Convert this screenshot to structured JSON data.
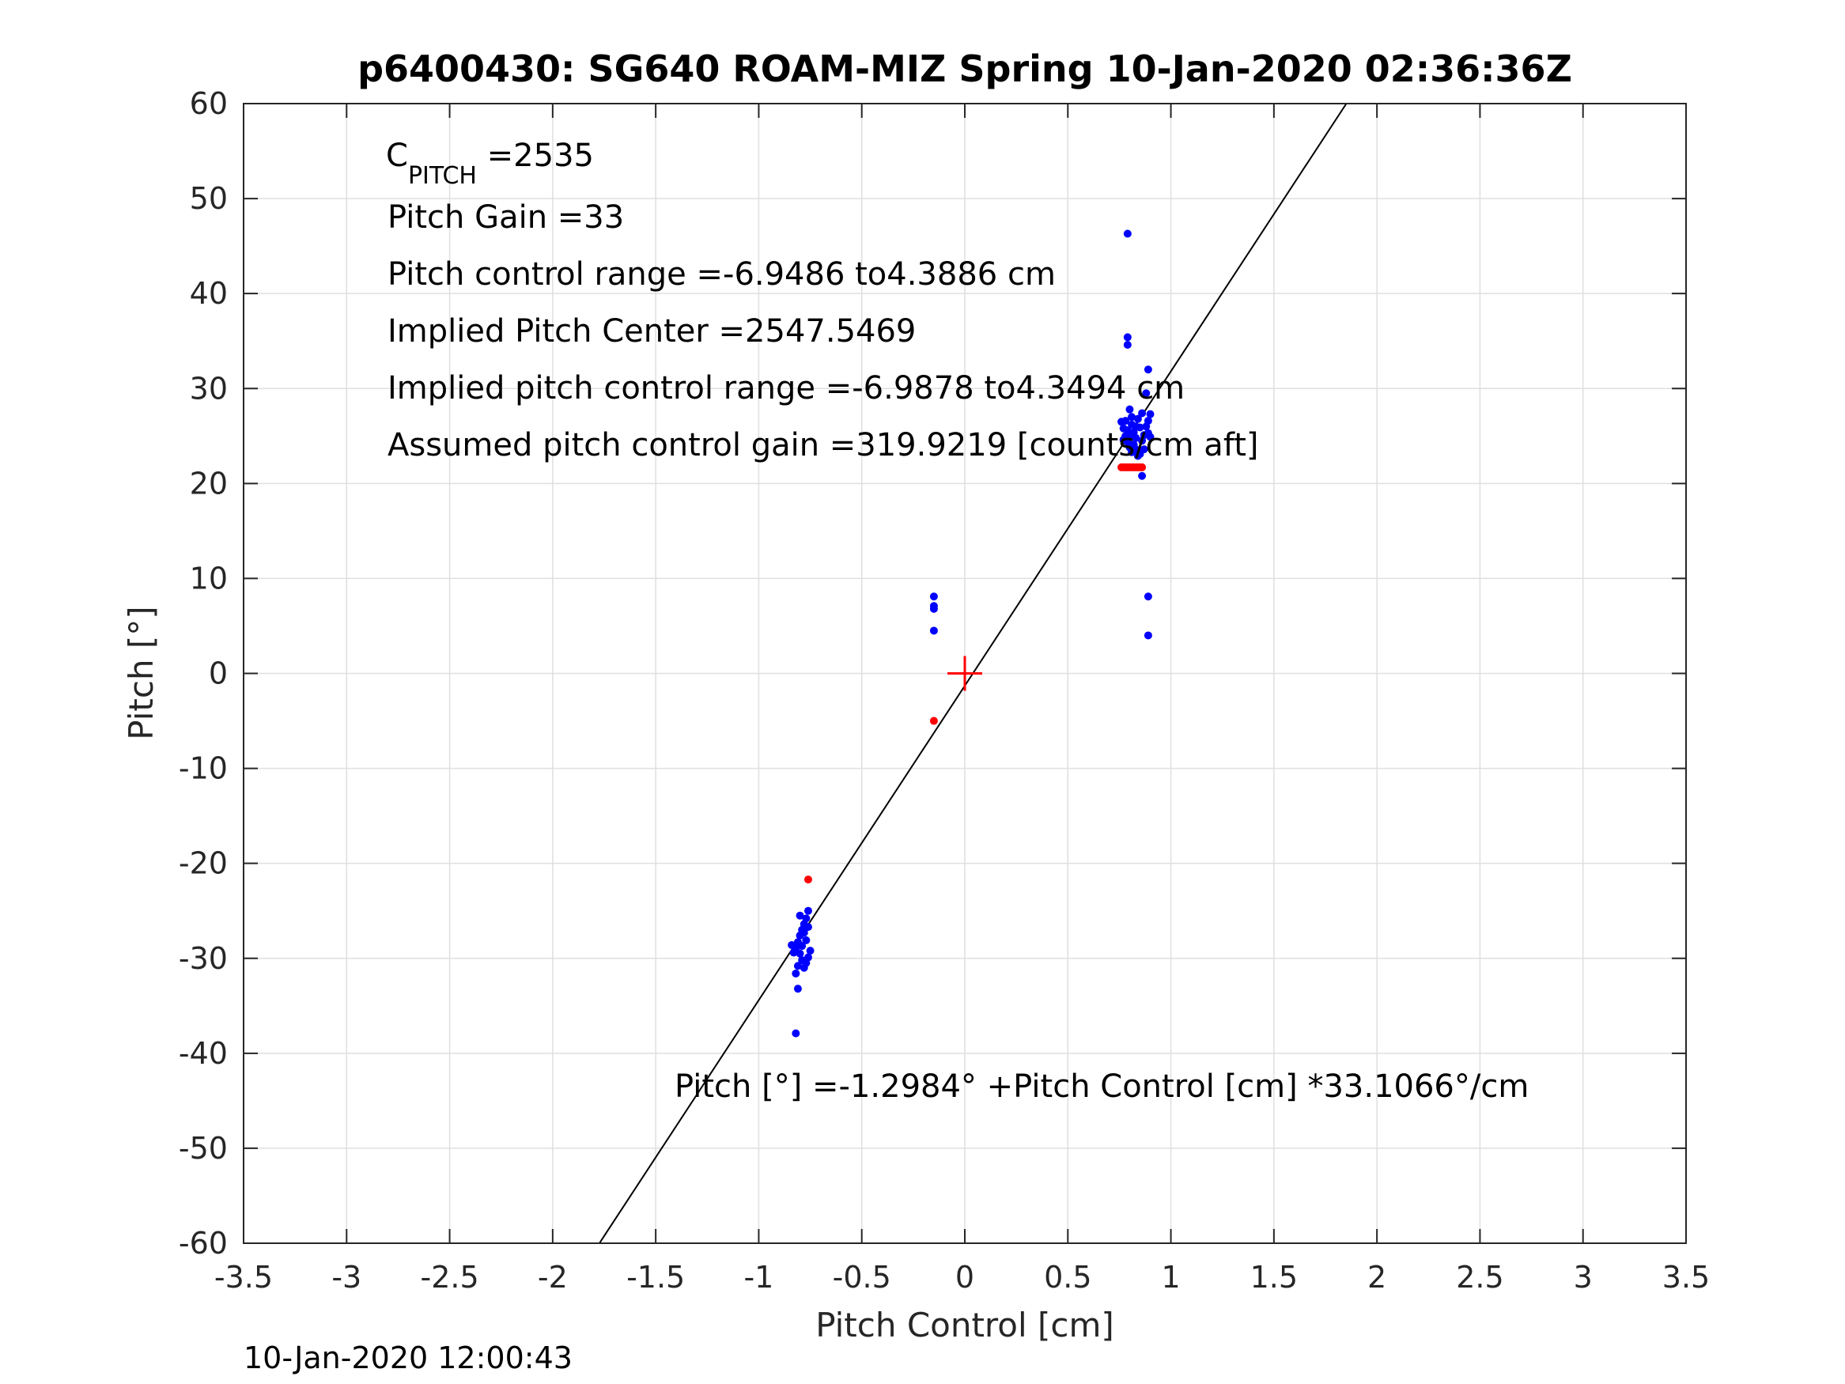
{
  "chart_data": {
    "type": "scatter",
    "title": "p6400430: SG640 ROAM-MIZ Spring 10-Jan-2020 02:36:36Z",
    "xlabel": "Pitch Control [cm]",
    "ylabel": "Pitch [°]",
    "xlim": [
      -3.5,
      3.5
    ],
    "ylim": [
      -60,
      60
    ],
    "xticks": [
      "-3.5",
      "-3",
      "-2.5",
      "-2",
      "-1.5",
      "-1",
      "-0.5",
      "0",
      "0.5",
      "1",
      "1.5",
      "2",
      "2.5",
      "3",
      "3.5"
    ],
    "yticks": [
      "60",
      "50",
      "40",
      "30",
      "20",
      "10",
      "0",
      "-10",
      "-20",
      "-30",
      "-40",
      "-50",
      "-60"
    ],
    "grid": true,
    "annotations": {
      "c_pitch_symbol": "C",
      "c_pitch_subscript": "PITCH",
      "c_pitch_value": " =2535",
      "pitch_gain": "Pitch Gain =33",
      "pitch_control_range": "Pitch control range =-6.9486 to4.3886 cm",
      "implied_pitch_center": "Implied Pitch Center =2547.5469",
      "implied_pitch_control_range": "Implied pitch control range =-6.9878 to4.3494 cm",
      "assumed_gain": "Assumed pitch control gain =319.9219 [counts/cm aft]",
      "fit_equation": "Pitch [°] =-1.2984° +Pitch Control [cm] *33.1066°/cm"
    },
    "fit_line": {
      "intercept": -1.2984,
      "slope": 33.1066,
      "color": "#000000"
    },
    "center_marker": {
      "x": 0,
      "y": 0,
      "color": "#ff0000"
    },
    "series": [
      {
        "color": "#0000ff",
        "points": [
          [
            0.79,
            46.3
          ],
          [
            0.79,
            35.4
          ],
          [
            0.79,
            34.6
          ],
          [
            0.89,
            32.0
          ],
          [
            0.88,
            29.5
          ],
          [
            0.8,
            27.8
          ],
          [
            0.76,
            26.5
          ],
          [
            0.77,
            25.8
          ],
          [
            0.78,
            25.0
          ],
          [
            0.79,
            24.4
          ],
          [
            0.8,
            23.8
          ],
          [
            0.81,
            26.2
          ],
          [
            0.82,
            25.4
          ],
          [
            0.83,
            24.8
          ],
          [
            0.84,
            26.8
          ],
          [
            0.85,
            25.9
          ],
          [
            0.86,
            24.5
          ],
          [
            0.87,
            23.6
          ],
          [
            0.88,
            26.0
          ],
          [
            0.89,
            25.3
          ],
          [
            0.9,
            24.9
          ],
          [
            0.9,
            27.3
          ],
          [
            0.81,
            23.3
          ],
          [
            0.84,
            22.9
          ],
          [
            0.86,
            27.4
          ],
          [
            0.83,
            26.0
          ],
          [
            0.78,
            26.6
          ],
          [
            0.8,
            25.1
          ],
          [
            0.82,
            24.1
          ],
          [
            0.85,
            23.1
          ],
          [
            0.87,
            25.1
          ],
          [
            0.89,
            26.6
          ],
          [
            0.77,
            24.6
          ],
          [
            0.79,
            25.6
          ],
          [
            0.81,
            27.0
          ],
          [
            0.83,
            23.6
          ],
          [
            0.86,
            20.8
          ],
          [
            0.89,
            8.1
          ],
          [
            0.89,
            4.0
          ],
          [
            -0.15,
            8.1
          ],
          [
            -0.15,
            7.1
          ],
          [
            -0.15,
            6.8
          ],
          [
            -0.15,
            4.5
          ],
          [
            -0.76,
            -25.0
          ],
          [
            -0.77,
            -25.8
          ],
          [
            -0.78,
            -26.4
          ],
          [
            -0.79,
            -27.0
          ],
          [
            -0.8,
            -27.6
          ],
          [
            -0.81,
            -28.3
          ],
          [
            -0.82,
            -28.9
          ],
          [
            -0.83,
            -29.4
          ],
          [
            -0.84,
            -28.6
          ],
          [
            -0.75,
            -29.2
          ],
          [
            -0.76,
            -29.9
          ],
          [
            -0.77,
            -30.5
          ],
          [
            -0.78,
            -31.0
          ],
          [
            -0.79,
            -30.2
          ],
          [
            -0.8,
            -29.5
          ],
          [
            -0.81,
            -30.8
          ],
          [
            -0.82,
            -31.6
          ],
          [
            -0.77,
            -28.1
          ],
          [
            -0.76,
            -26.7
          ],
          [
            -0.78,
            -27.3
          ],
          [
            -0.8,
            -25.5
          ],
          [
            -0.79,
            -28.7
          ],
          [
            -0.81,
            -33.2
          ],
          [
            -0.82,
            -37.9
          ]
        ]
      },
      {
        "color": "#ff0000",
        "points": [
          [
            0.76,
            21.7
          ],
          [
            0.77,
            21.7
          ],
          [
            0.78,
            21.7
          ],
          [
            0.79,
            21.7
          ],
          [
            0.8,
            21.7
          ],
          [
            0.81,
            21.7
          ],
          [
            0.82,
            21.7
          ],
          [
            0.83,
            21.7
          ],
          [
            0.84,
            21.7
          ],
          [
            0.85,
            21.7
          ],
          [
            0.86,
            21.7
          ],
          [
            -0.15,
            -5.0
          ],
          [
            -0.76,
            -21.7
          ]
        ]
      }
    ]
  },
  "footer": {
    "timestamp": "10-Jan-2020 12:00:43"
  }
}
